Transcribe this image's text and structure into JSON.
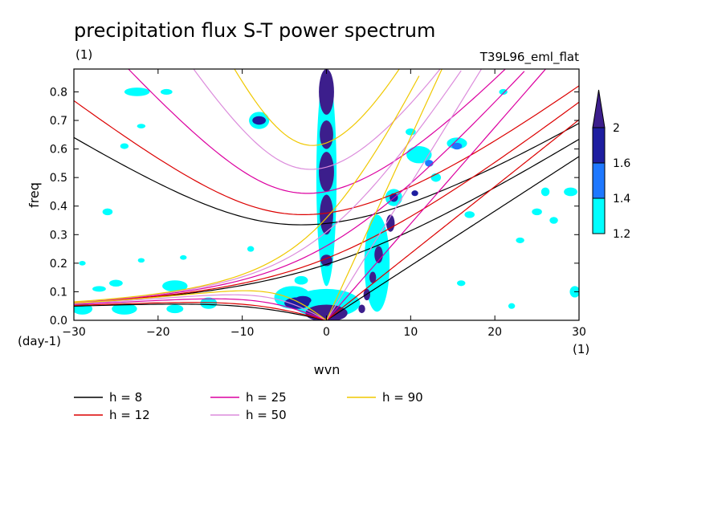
{
  "chart_data": {
    "type": "contour",
    "title": "precipitation flux S-T power spectrum",
    "units_label": "(1)",
    "run_label": "T39L96_eml_flat",
    "xlabel": "wvn",
    "ylabel": "freq",
    "x_unit_label": "(1)",
    "y_unit_label": "(day-1)",
    "xlim": [
      -30,
      30
    ],
    "ylim": [
      0,
      0.88
    ],
    "xticks": [
      -30,
      -20,
      -10,
      0,
      10,
      20,
      30
    ],
    "yticks": [
      0.0,
      0.1,
      0.2,
      0.3,
      0.4,
      0.5,
      0.6,
      0.7,
      0.8
    ],
    "colorbar": {
      "levels": [
        "1.2",
        "1.4",
        "1.6",
        "2"
      ],
      "colors": [
        "#00ffff",
        "#1e78ff",
        "#1e1ea0",
        "#3c1e8c"
      ]
    },
    "dispersion_curves": [
      {
        "label": "h =  8",
        "h": 8,
        "color": "#000000"
      },
      {
        "label": "h = 12",
        "h": 12,
        "color": "#dc0000"
      },
      {
        "label": "h = 25",
        "h": 25,
        "color": "#dc00a0"
      },
      {
        "label": "h = 50",
        "h": 50,
        "color": "#dc8cdc"
      },
      {
        "label": "h = 90",
        "h": 90,
        "color": "#f0c800"
      }
    ],
    "contour_blobs": [
      {
        "x": 0,
        "y": 0.8,
        "rx": 0.9,
        "ry": 0.08,
        "level": 3
      },
      {
        "x": 0,
        "y": 0.65,
        "rx": 0.8,
        "ry": 0.05,
        "level": 3
      },
      {
        "x": 0,
        "y": 0.52,
        "rx": 0.9,
        "ry": 0.07,
        "level": 3
      },
      {
        "x": 0,
        "y": 0.37,
        "rx": 0.8,
        "ry": 0.07,
        "level": 3
      },
      {
        "x": 0,
        "y": 0.21,
        "rx": 0.7,
        "ry": 0.02,
        "level": 3
      },
      {
        "x": 0,
        "y": 0.025,
        "rx": 2.5,
        "ry": 0.03,
        "level": 3
      },
      {
        "x": -3.5,
        "y": 0.06,
        "rx": 1.5,
        "ry": 0.02,
        "level": 2
      },
      {
        "x": -8,
        "y": 0.7,
        "rx": 0.8,
        "ry": 0.015,
        "level": 2
      },
      {
        "x": -2.8,
        "y": 0.07,
        "rx": 1.0,
        "ry": 0.015,
        "level": 2
      },
      {
        "x": 7.6,
        "y": 0.34,
        "rx": 0.5,
        "ry": 0.03,
        "level": 3
      },
      {
        "x": 6.2,
        "y": 0.23,
        "rx": 0.5,
        "ry": 0.03,
        "level": 3
      },
      {
        "x": 5.5,
        "y": 0.15,
        "rx": 0.4,
        "ry": 0.02,
        "level": 3
      },
      {
        "x": 4.8,
        "y": 0.09,
        "rx": 0.4,
        "ry": 0.02,
        "level": 3
      },
      {
        "x": 4.2,
        "y": 0.04,
        "rx": 0.4,
        "ry": 0.015,
        "level": 3
      },
      {
        "x": 8.0,
        "y": 0.43,
        "rx": 0.5,
        "ry": 0.015,
        "level": 2
      },
      {
        "x": 10.5,
        "y": 0.445,
        "rx": 0.4,
        "ry": 0.01,
        "level": 2
      },
      {
        "x": 12.2,
        "y": 0.55,
        "rx": 0.5,
        "ry": 0.012,
        "level": 1
      },
      {
        "x": 15.5,
        "y": 0.61,
        "rx": 0.6,
        "ry": 0.012,
        "level": 1
      }
    ],
    "cyan_blobs": [
      {
        "x": -22.5,
        "y": 0.8,
        "rx": 1.5,
        "ry": 0.015
      },
      {
        "x": -19,
        "y": 0.8,
        "rx": 0.7,
        "ry": 0.01
      },
      {
        "x": -8,
        "y": 0.7,
        "rx": 1.2,
        "ry": 0.03
      },
      {
        "x": -22,
        "y": 0.68,
        "rx": 0.5,
        "ry": 0.008
      },
      {
        "x": -29,
        "y": 0.04,
        "rx": 1.2,
        "ry": 0.02
      },
      {
        "x": -24,
        "y": 0.04,
        "rx": 1.5,
        "ry": 0.02
      },
      {
        "x": -18,
        "y": 0.04,
        "rx": 1.0,
        "ry": 0.015
      },
      {
        "x": -14,
        "y": 0.06,
        "rx": 1.0,
        "ry": 0.02
      },
      {
        "x": -27,
        "y": 0.11,
        "rx": 0.8,
        "ry": 0.01
      },
      {
        "x": -25,
        "y": 0.13,
        "rx": 0.8,
        "ry": 0.012
      },
      {
        "x": -18,
        "y": 0.12,
        "rx": 1.5,
        "ry": 0.02
      },
      {
        "x": -4,
        "y": 0.08,
        "rx": 2.2,
        "ry": 0.04
      },
      {
        "x": -3,
        "y": 0.14,
        "rx": 0.8,
        "ry": 0.015
      },
      {
        "x": 0,
        "y": 0.5,
        "rx": 1.2,
        "ry": 0.38
      },
      {
        "x": 0,
        "y": 0.06,
        "rx": 4,
        "ry": 0.05
      },
      {
        "x": 6,
        "y": 0.2,
        "rx": 1.5,
        "ry": 0.17
      },
      {
        "x": 8,
        "y": 0.43,
        "rx": 1.0,
        "ry": 0.03
      },
      {
        "x": 11,
        "y": 0.58,
        "rx": 1.5,
        "ry": 0.03
      },
      {
        "x": 15.5,
        "y": 0.62,
        "rx": 1.2,
        "ry": 0.02
      },
      {
        "x": 13,
        "y": 0.5,
        "rx": 0.6,
        "ry": 0.015
      },
      {
        "x": 10,
        "y": 0.66,
        "rx": 0.6,
        "ry": 0.012
      },
      {
        "x": 21,
        "y": 0.8,
        "rx": 0.5,
        "ry": 0.01
      },
      {
        "x": 26,
        "y": 0.45,
        "rx": 0.5,
        "ry": 0.015
      },
      {
        "x": 29,
        "y": 0.45,
        "rx": 0.8,
        "ry": 0.015
      },
      {
        "x": 25,
        "y": 0.38,
        "rx": 0.6,
        "ry": 0.012
      },
      {
        "x": 27,
        "y": 0.35,
        "rx": 0.5,
        "ry": 0.012
      },
      {
        "x": 29.5,
        "y": 0.1,
        "rx": 0.6,
        "ry": 0.02
      },
      {
        "x": 23,
        "y": 0.28,
        "rx": 0.5,
        "ry": 0.01
      },
      {
        "x": 17,
        "y": 0.37,
        "rx": 0.6,
        "ry": 0.012
      },
      {
        "x": -26,
        "y": 0.38,
        "rx": 0.6,
        "ry": 0.012
      },
      {
        "x": -9,
        "y": 0.25,
        "rx": 0.4,
        "ry": 0.01
      },
      {
        "x": -22,
        "y": 0.21,
        "rx": 0.4,
        "ry": 0.008
      },
      {
        "x": -17,
        "y": 0.22,
        "rx": 0.4,
        "ry": 0.008
      },
      {
        "x": -24,
        "y": 0.61,
        "rx": 0.5,
        "ry": 0.01
      },
      {
        "x": -29,
        "y": 0.2,
        "rx": 0.4,
        "ry": 0.008
      },
      {
        "x": 16,
        "y": 0.13,
        "rx": 0.5,
        "ry": 0.01
      },
      {
        "x": 22,
        "y": 0.05,
        "rx": 0.4,
        "ry": 0.01
      }
    ]
  }
}
